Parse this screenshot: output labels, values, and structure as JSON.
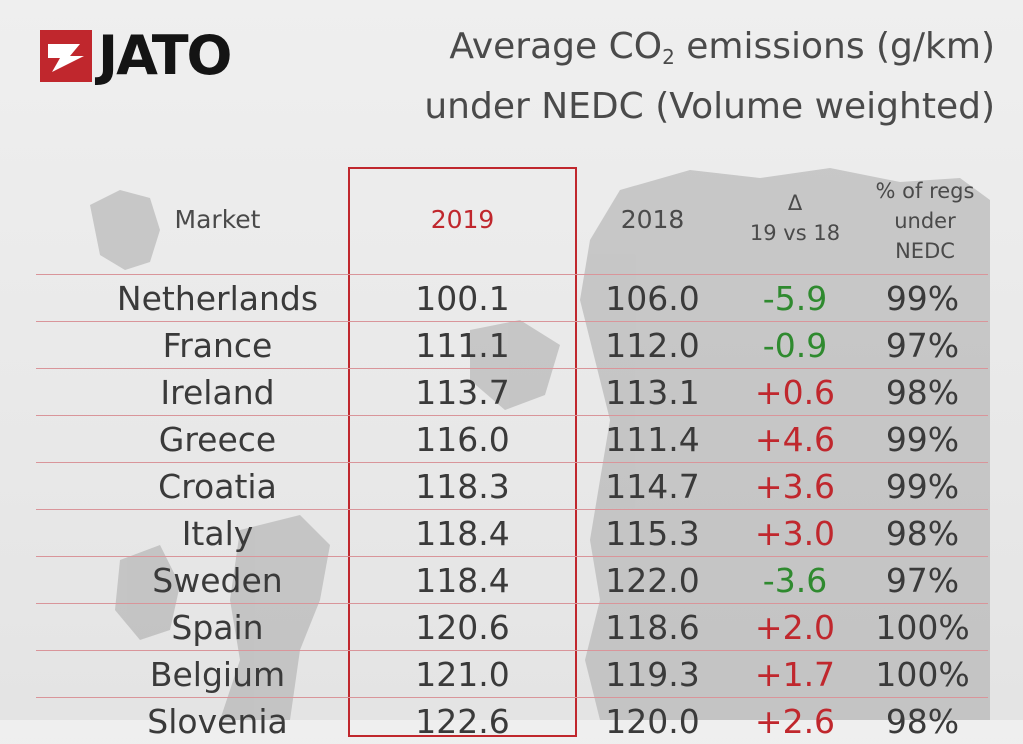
{
  "brand": {
    "logo_text": "JATO",
    "accent": "#c0272d"
  },
  "title": {
    "line1_pre": "Average CO",
    "line1_sub": "2",
    "line1_post": " emissions (g/km)",
    "line2": "under NEDC (Volume weighted)"
  },
  "colors": {
    "negative": "#2f8a2f",
    "positive": "#c0272d",
    "text": "#3a3a3a"
  },
  "chart_data": {
    "type": "table",
    "title": "Average CO2 emissions (g/km) under NEDC (Volume weighted)",
    "columns": [
      "Market",
      "2019",
      "2018",
      "Δ 19 vs 18",
      "% of regs under NEDC"
    ],
    "header": {
      "market": "Market",
      "y2019": "2019",
      "y2018": "2018",
      "delta_symbol": "Δ",
      "delta_sub": "19 vs 18",
      "pct_l1": "% of regs",
      "pct_l2": "under",
      "pct_l3": "NEDC"
    },
    "rows": [
      {
        "market": "Netherlands",
        "y2019": "100.1",
        "y2018": "106.0",
        "delta": "-5.9",
        "pct": "99%"
      },
      {
        "market": "France",
        "y2019": "111.1",
        "y2018": "112.0",
        "delta": "-0.9",
        "pct": "97%"
      },
      {
        "market": "Ireland",
        "y2019": "113.7",
        "y2018": "113.1",
        "delta": "+0.6",
        "pct": "98%"
      },
      {
        "market": "Greece",
        "y2019": "116.0",
        "y2018": "111.4",
        "delta": "+4.6",
        "pct": "99%"
      },
      {
        "market": "Croatia",
        "y2019": "118.3",
        "y2018": "114.7",
        "delta": "+3.6",
        "pct": "99%"
      },
      {
        "market": "Italy",
        "y2019": "118.4",
        "y2018": "115.3",
        "delta": "+3.0",
        "pct": "98%"
      },
      {
        "market": "Sweden",
        "y2019": "118.4",
        "y2018": "122.0",
        "delta": "-3.6",
        "pct": "97%"
      },
      {
        "market": "Spain",
        "y2019": "120.6",
        "y2018": "118.6",
        "delta": "+2.0",
        "pct": "100%"
      },
      {
        "market": "Belgium",
        "y2019": "121.0",
        "y2018": "119.3",
        "delta": "+1.7",
        "pct": "100%"
      },
      {
        "market": "Slovenia",
        "y2019": "122.6",
        "y2018": "120.0",
        "delta": "+2.6",
        "pct": "98%"
      }
    ]
  }
}
